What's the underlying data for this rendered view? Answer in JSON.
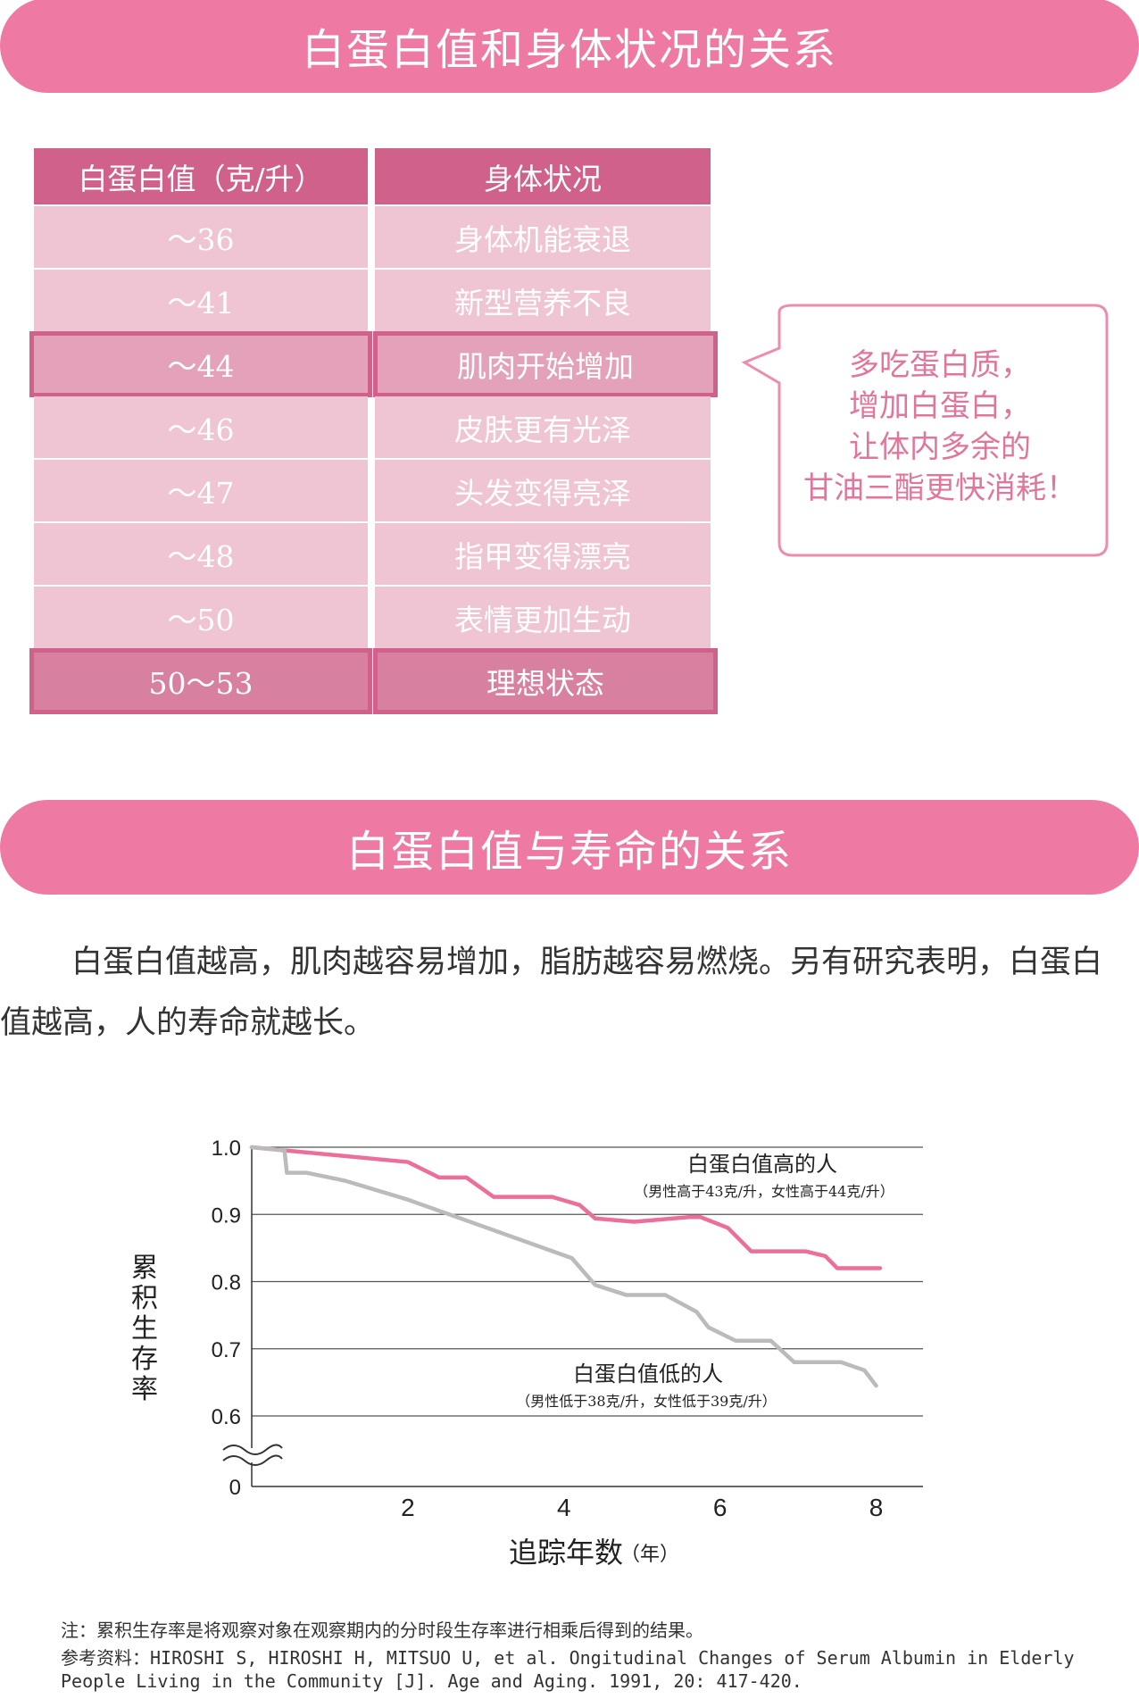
{
  "section1": {
    "title": "白蛋白值和身体状况的关系",
    "table": {
      "headers": [
        "白蛋白值（克/升）",
        "身体状况"
      ],
      "rows": [
        {
          "value": "～36",
          "status": "身体机能衰退",
          "style": "row"
        },
        {
          "value": "～41",
          "status": "新型营养不良",
          "style": "row"
        },
        {
          "value": "～44",
          "status": "肌肉开始增加",
          "style": "hl"
        },
        {
          "value": "～46",
          "status": "皮肤更有光泽",
          "style": "row"
        },
        {
          "value": "～47",
          "status": "头发变得亮泽",
          "style": "row"
        },
        {
          "value": "～48",
          "status": "指甲变得漂亮",
          "style": "row"
        },
        {
          "value": "～50",
          "status": "表情更加生动",
          "style": "row"
        },
        {
          "value": "50～53",
          "status": "理想状态",
          "style": "hl2"
        }
      ]
    },
    "bubble": [
      "多吃蛋白质，",
      "增加白蛋白，",
      "让体内多余的",
      "甘油三酯更快消耗！"
    ]
  },
  "section2": {
    "title": "白蛋白值与寿命的关系",
    "paragraph_line1": "白蛋白值越高，肌肉越容易增加，脂肪越容易燃烧。另有研究表明，白蛋白",
    "paragraph_line2": "值越高，人的寿命就越长。"
  },
  "chart_data": {
    "type": "line",
    "ylabel": "累积生存率",
    "xlabel": "追踪年数",
    "xlabel_unit": "（年）",
    "x_ticks": [
      "2",
      "4",
      "6",
      "8"
    ],
    "y_ticks": [
      "0",
      "0.6",
      "0.7",
      "0.8",
      "0.9",
      "1.0"
    ],
    "xlim": [
      0,
      8.6
    ],
    "ylim": [
      0.6,
      1.0
    ],
    "axis_break": true,
    "grid": true,
    "series": [
      {
        "name": "白蛋白值高的人",
        "note": "（男性高于43克/升，女性高于44克/升）",
        "color": "#ec6f9b",
        "points": [
          [
            0,
            1.0
          ],
          [
            2.0,
            0.978
          ],
          [
            2.4,
            0.955
          ],
          [
            2.75,
            0.955
          ],
          [
            3.1,
            0.926
          ],
          [
            3.85,
            0.926
          ],
          [
            4.2,
            0.914
          ],
          [
            4.4,
            0.894
          ],
          [
            4.9,
            0.889
          ],
          [
            5.6,
            0.896
          ],
          [
            5.75,
            0.896
          ],
          [
            6.1,
            0.88
          ],
          [
            6.4,
            0.845
          ],
          [
            7.1,
            0.845
          ],
          [
            7.35,
            0.838
          ],
          [
            7.5,
            0.82
          ],
          [
            8.05,
            0.82
          ]
        ]
      },
      {
        "name": "白蛋白值低的人",
        "note": "（男性低于38克/升，女性低于39克/升）",
        "color": "#bbbbbb",
        "points": [
          [
            0,
            1.0
          ],
          [
            0.42,
            0.995
          ],
          [
            0.45,
            0.962
          ],
          [
            0.7,
            0.962
          ],
          [
            1.2,
            0.95
          ],
          [
            2.0,
            0.922
          ],
          [
            4.1,
            0.835
          ],
          [
            4.4,
            0.795
          ],
          [
            4.8,
            0.78
          ],
          [
            5.3,
            0.78
          ],
          [
            5.7,
            0.755
          ],
          [
            5.85,
            0.732
          ],
          [
            6.2,
            0.712
          ],
          [
            6.65,
            0.712
          ],
          [
            6.95,
            0.68
          ],
          [
            7.55,
            0.68
          ],
          [
            7.85,
            0.668
          ],
          [
            8.0,
            0.645
          ]
        ]
      }
    ]
  },
  "notes": {
    "note": "注：累积生存率是将观察对象在观察期内的分时段生存率进行相乘后得到的结果。",
    "ref_line1": "参考资料：HIROSHI S, HIROSHI H, MITSUO U, et al. Ongitudinal Changes of Serum Albumin in Elderly",
    "ref_line2": "People Living in the Community [J]. Age and Aging. 1991, 20: 417-420."
  }
}
